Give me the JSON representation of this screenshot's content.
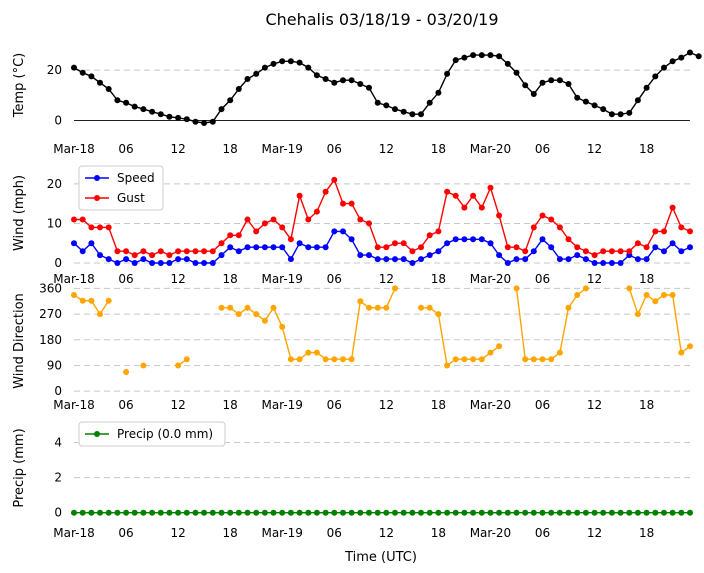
{
  "title": "Chehalis 03/18/19 - 03/20/19",
  "x_axis_label": "Time (UTC)",
  "x_ticks": [
    "Mar-18",
    "06",
    "12",
    "18",
    "Mar-19",
    "06",
    "12",
    "18",
    "Mar-20",
    "06",
    "12",
    "18"
  ],
  "colors": {
    "temp": "#000000",
    "speed": "#0000ff",
    "gust": "#ff0000",
    "direction": "#ffa500",
    "precip": "#008000"
  },
  "chart_data": [
    {
      "type": "line",
      "ylabel": "Temp ( C)",
      "ylim": [
        -3,
        30
      ],
      "yticks": [
        "0",
        "20"
      ],
      "ytick_values": [
        0,
        20
      ],
      "x_start_hour": 0,
      "x_step_hours": 1,
      "series": [
        {
          "name": "Temp",
          "values": [
            21,
            19,
            17.5,
            15,
            12.5,
            8,
            7,
            5.5,
            4.5,
            3.5,
            2.5,
            1.5,
            1,
            0.5,
            -0.5,
            -1,
            -0.5,
            4.5,
            8,
            12.5,
            16.5,
            18.5,
            21,
            22.5,
            23.5,
            23.5,
            23,
            21,
            18,
            16.5,
            15,
            16,
            16,
            14.5,
            13,
            7,
            6,
            4.5,
            3.5,
            2.5,
            2.5,
            7,
            11,
            18.5,
            24,
            25,
            26,
            26,
            26,
            25.5,
            22.5,
            19,
            14,
            10.5,
            15,
            16,
            16,
            14.5,
            9,
            7.5,
            6,
            4.5,
            2.5,
            2.5,
            3,
            8,
            13,
            17.5,
            21,
            23.5,
            25,
            27,
            25.5
          ]
        }
      ]
    },
    {
      "type": "line",
      "ylabel": "Wind (mph)",
      "ylim": [
        -1,
        24
      ],
      "yticks": [
        "0",
        "10",
        "20"
      ],
      "ytick_values": [
        0,
        10,
        20
      ],
      "x_start_hour": 0,
      "x_step_hours": 1,
      "series": [
        {
          "name": "Speed",
          "values": [
            5,
            3,
            5,
            2,
            1,
            0,
            1,
            0,
            1,
            0,
            0,
            0,
            1,
            1,
            0,
            0,
            0,
            2,
            4,
            3,
            4,
            4,
            4,
            4,
            4,
            1,
            5,
            4,
            4,
            4,
            8,
            8,
            6,
            2,
            2,
            1,
            1,
            1,
            1,
            0,
            1,
            2,
            3,
            5,
            6,
            6,
            6,
            6,
            5,
            2,
            0,
            1,
            1,
            3,
            6,
            4,
            1,
            1,
            2,
            1,
            0,
            0,
            0,
            0,
            2,
            1,
            1,
            4,
            3,
            5,
            3,
            4
          ]
        },
        {
          "name": "Gust",
          "values": [
            11,
            11,
            9,
            9,
            9,
            3,
            3,
            2,
            3,
            2,
            3,
            2,
            3,
            3,
            3,
            3,
            3,
            5,
            7,
            7,
            11,
            8,
            10,
            11,
            9,
            6,
            17,
            11,
            13,
            18,
            21,
            15,
            15,
            11,
            10,
            4,
            4,
            5,
            5,
            3,
            4,
            7,
            8,
            18,
            17,
            14,
            17,
            14,
            19,
            12,
            4,
            4,
            3,
            9,
            12,
            11,
            9,
            6,
            4,
            3,
            2,
            3,
            3,
            3,
            3,
            5,
            4,
            8,
            8,
            14,
            9,
            8
          ]
        }
      ],
      "legend": [
        "Speed",
        "Gust"
      ]
    },
    {
      "type": "line",
      "ylabel": "Wind Direction",
      "ylim": [
        -10,
        365
      ],
      "yticks": [
        "0",
        "90",
        "180",
        "270",
        "360"
      ],
      "ytick_values": [
        0,
        90,
        180,
        270,
        360
      ],
      "x_start_hour": 0,
      "x_step_hours": 1,
      "series": [
        {
          "name": "Direction",
          "values": [
            337,
            317,
            317,
            270,
            317,
            null,
            67,
            null,
            90,
            null,
            null,
            null,
            90,
            112,
            null,
            null,
            null,
            292,
            292,
            270,
            292,
            270,
            247,
            292,
            225,
            112,
            112,
            135,
            135,
            112,
            112,
            112,
            112,
            315,
            292,
            292,
            292,
            360,
            null,
            null,
            292,
            292,
            270,
            90,
            112,
            112,
            112,
            112,
            135,
            157,
            null,
            360,
            112,
            112,
            112,
            112,
            135,
            292,
            337,
            360,
            null,
            null,
            null,
            null,
            360,
            270,
            337,
            315,
            337,
            337,
            135,
            157
          ]
        }
      ]
    },
    {
      "type": "line",
      "ylabel": "Precip (mm)",
      "ylim": [
        -0.3,
        5
      ],
      "yticks": [
        "0",
        "2",
        "4"
      ],
      "ytick_values": [
        0,
        2,
        4
      ],
      "x_start_hour": 0,
      "x_step_hours": 1,
      "series": [
        {
          "name": "Precip (0.0 mm)",
          "values": [
            0,
            0,
            0,
            0,
            0,
            0,
            0,
            0,
            0,
            0,
            0,
            0,
            0,
            0,
            0,
            0,
            0,
            0,
            0,
            0,
            0,
            0,
            0,
            0,
            0,
            0,
            0,
            0,
            0,
            0,
            0,
            0,
            0,
            0,
            0,
            0,
            0,
            0,
            0,
            0,
            0,
            0,
            0,
            0,
            0,
            0,
            0,
            0,
            0,
            0,
            0,
            0,
            0,
            0,
            0,
            0,
            0,
            0,
            0,
            0,
            0,
            0,
            0,
            0,
            0,
            0,
            0,
            0,
            0,
            0,
            0,
            0
          ]
        }
      ],
      "legend": [
        "Precip (0.0 mm)"
      ]
    }
  ]
}
